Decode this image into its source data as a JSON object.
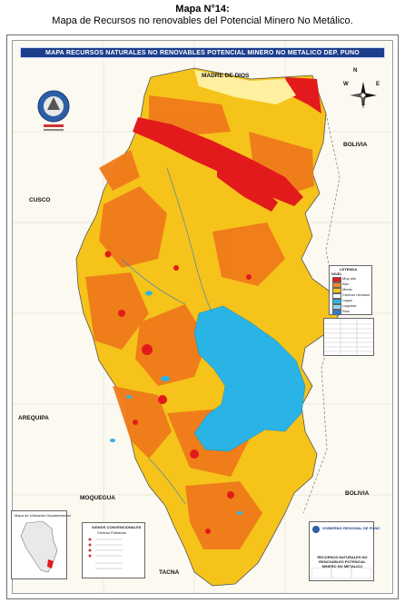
{
  "heading": {
    "line1": "Mapa N°14:",
    "line2": "Mapa de Recursos no renovables del Potencial Minero No Metálico."
  },
  "map": {
    "banner_title": "MAPA RECURSOS NATURALES NO RENOVABLES POTENCIAL MINERO NO METALICO DEP. PUNO",
    "labels": {
      "madre_de_dios": "MADRE DE DIOS",
      "bolivia_top": "BOLIVIA",
      "cusco": "CUSCO",
      "arequipa": "AREQUIPA",
      "moquegua": "MOQUEGUA",
      "bolivia_bottom": "BOLIVIA",
      "tacna": "TACNA"
    },
    "compass": {
      "n": "N",
      "s": "S",
      "e": "E",
      "w": "W"
    },
    "legend": {
      "title": "LEYENDA",
      "subtitle": "NIVEL",
      "items": [
        {
          "label": "Muy alto",
          "color": "#e31a1c"
        },
        {
          "label": "Alto",
          "color": "#f08a24"
        },
        {
          "label": "Medio",
          "color": "#f5c31a"
        },
        {
          "label": "Centros Urbanos",
          "color": "#ffffff"
        },
        {
          "label": "Lagos",
          "color": "#29b6e8"
        },
        {
          "label": "Lagunas",
          "color": "#8fd8f2"
        },
        {
          "label": "Rios",
          "color": "#2a7fd4"
        }
      ]
    },
    "colors": {
      "very_high": "#e31a1c",
      "high": "#ef7b1a",
      "medium": "#f5c31a",
      "low": "#f2e27a",
      "lake": "#2ab4e6",
      "forest": "#fff4b0",
      "frame_blue": "#1d3e8c"
    },
    "locator": {
      "title": "Mapa de Ubicación Departamental"
    },
    "conventional": {
      "title": "SIGNOS CONVENCIONALES",
      "subtitle": "Centros Poblados"
    },
    "titleblock": {
      "org": "GOBIERNO REGIONAL DE PUNO",
      "map_name": "RECURSOS NATURALES NO RENOVABLES POTENCIAL MINERO NO METALICO"
    },
    "coat_of_arms_icon": "regional-emblem-icon"
  }
}
